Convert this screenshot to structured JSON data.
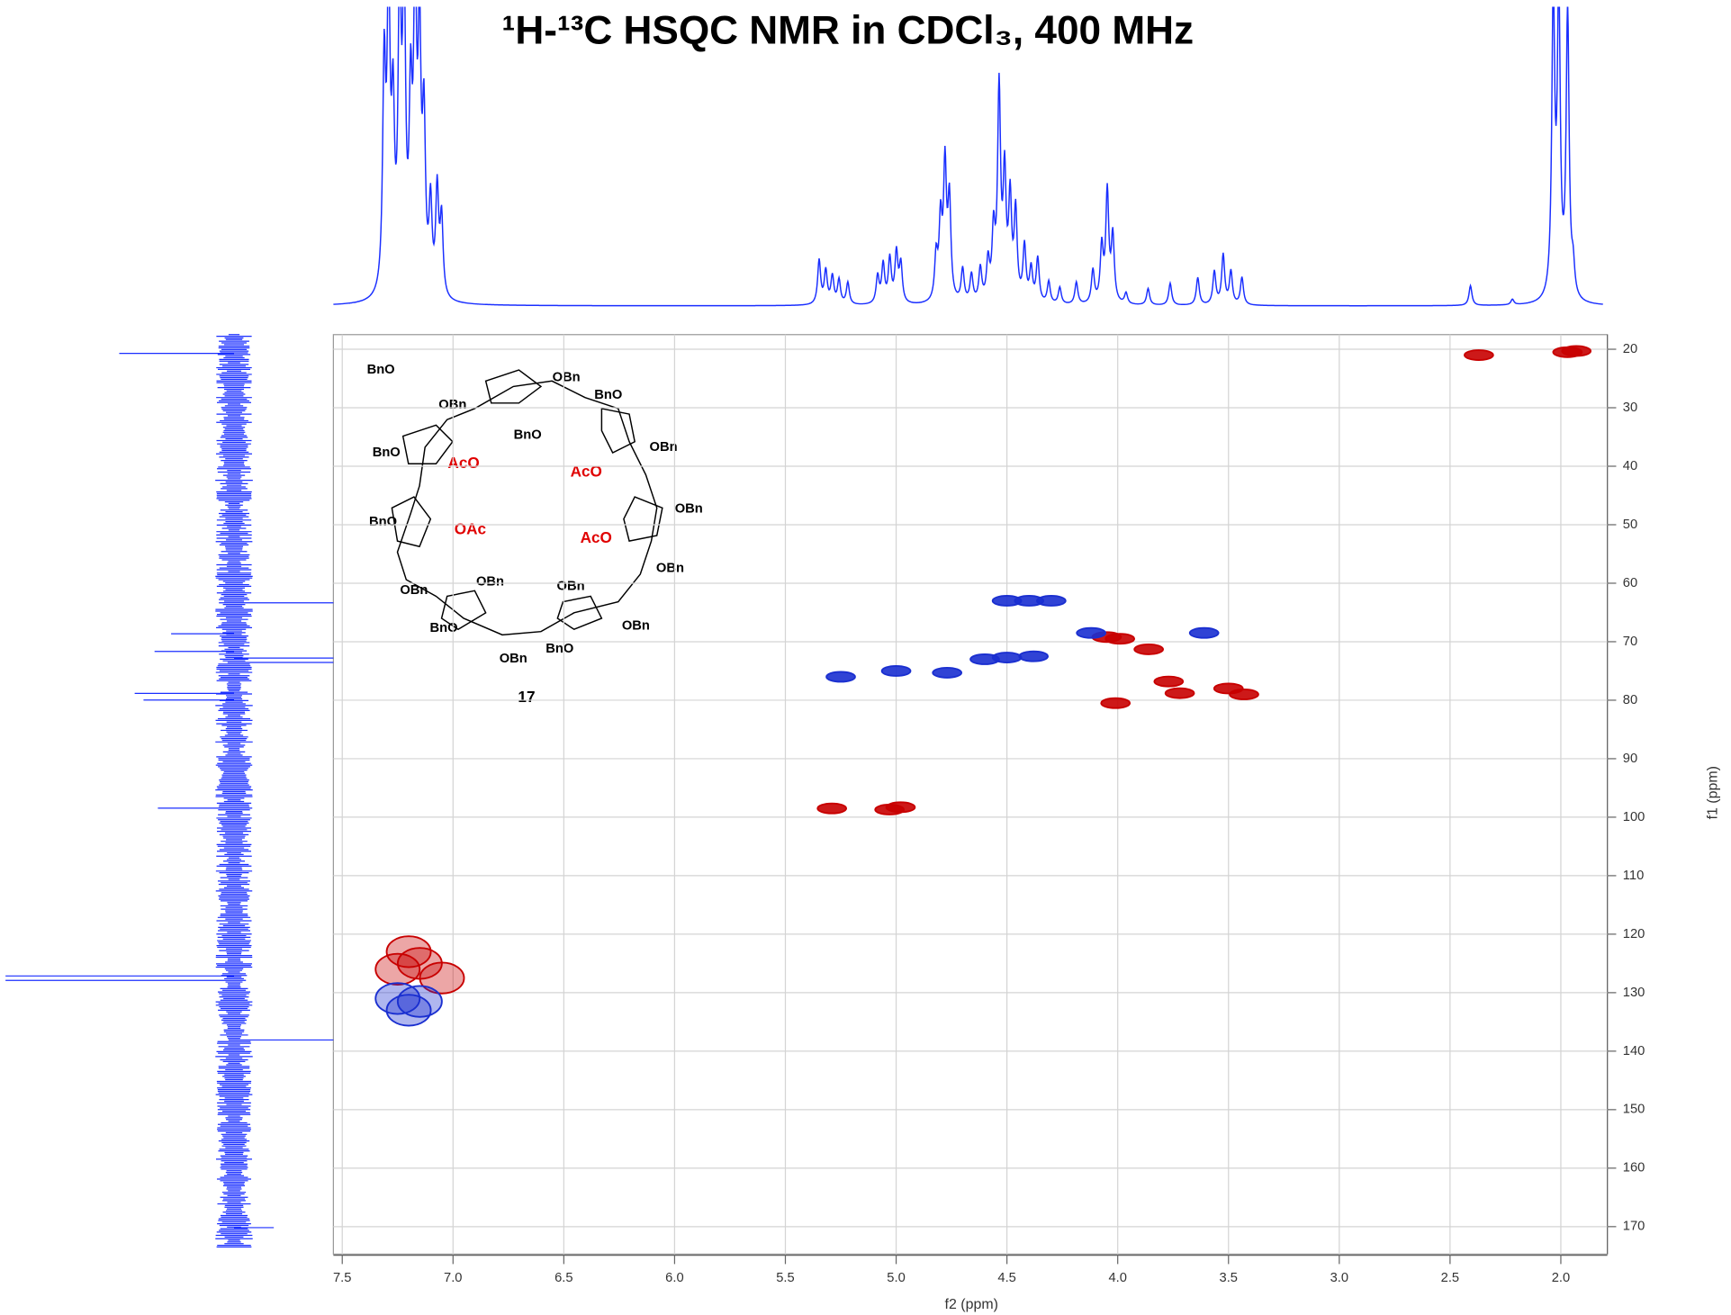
{
  "chart_data": {
    "type": "hsqc",
    "title": "¹H-¹³C HSQC NMR in CDCl₃, 400 MHz",
    "xlabel": "f2 (ppm)",
    "ylabel": "f1 (ppm)",
    "xlim": [
      7.54,
      1.79
    ],
    "ylim": [
      17.5,
      174.7
    ],
    "xticks": [
      7.5,
      {
        "value": 7,
        "label": "7.0"
      },
      6.5,
      {
        "value": 6,
        "label": "6.0"
      },
      5.5,
      {
        "value": 5,
        "label": "5.0"
      },
      4.5,
      {
        "value": 4,
        "label": "4.0"
      },
      3.5,
      {
        "value": 3,
        "label": "3.0"
      },
      2.5,
      {
        "value": 2,
        "label": "2.0"
      }
    ],
    "yticks": [
      20,
      30,
      40,
      50,
      60,
      70,
      80,
      90,
      100,
      110,
      120,
      130,
      140,
      150,
      160,
      170
    ],
    "grid": true,
    "series": [
      {
        "color": "#c80000",
        "x": [
          4.05,
          3.99,
          3.86,
          3.77,
          3.72,
          3.5,
          3.43,
          4.01,
          5.29,
          5.03,
          4.98,
          1.97,
          1.93,
          2.37,
          7.25,
          7.15,
          7.2,
          7.05
        ],
        "values": [
          69.2,
          69.5,
          71.3,
          76.8,
          78.8,
          78,
          79,
          80.5,
          98.5,
          98.7,
          98.3,
          20.5,
          20.3,
          21,
          126,
          125,
          123,
          127.5
        ]
      },
      {
        "color": "#1a2fd0",
        "x": [
          4.5,
          4.4,
          4.3,
          4.12,
          3.61,
          4.6,
          4.5,
          4.38,
          4.77,
          5.0,
          5.25,
          7.25,
          7.2,
          7.15
        ],
        "values": [
          63,
          63,
          63,
          68.5,
          68.5,
          73,
          72.7,
          72.5,
          75.3,
          75,
          76,
          131,
          133,
          131.5
        ]
      }
    ]
  },
  "structure": {
    "labels": [
      {
        "text": "BnO",
        "color": "#000"
      },
      {
        "text": "OBn",
        "color": "#000"
      },
      {
        "text": "BnO",
        "color": "#000"
      },
      {
        "text": "OBn",
        "color": "#000"
      },
      {
        "text": "BnO",
        "color": "#000"
      },
      {
        "text": "OBn",
        "color": "#000"
      },
      {
        "text": "BnO",
        "color": "#000"
      },
      {
        "text": "AcO",
        "color": "#e00000"
      },
      {
        "text": "AcO",
        "color": "#e00000"
      },
      {
        "text": "OBn",
        "color": "#000"
      },
      {
        "text": "BnO",
        "color": "#000"
      },
      {
        "text": "OAc",
        "color": "#e00000"
      },
      {
        "text": "AcO",
        "color": "#e00000"
      },
      {
        "text": "OBn",
        "color": "#000"
      },
      {
        "text": "OBn",
        "color": "#000"
      },
      {
        "text": "OBn",
        "color": "#000"
      },
      {
        "text": "OBn",
        "color": "#000"
      },
      {
        "text": "OBn",
        "color": "#000"
      },
      {
        "text": "BnO",
        "color": "#000"
      },
      {
        "text": "BnO",
        "color": "#000"
      },
      {
        "text": "OBn",
        "color": "#000"
      }
    ],
    "compound": "17"
  }
}
